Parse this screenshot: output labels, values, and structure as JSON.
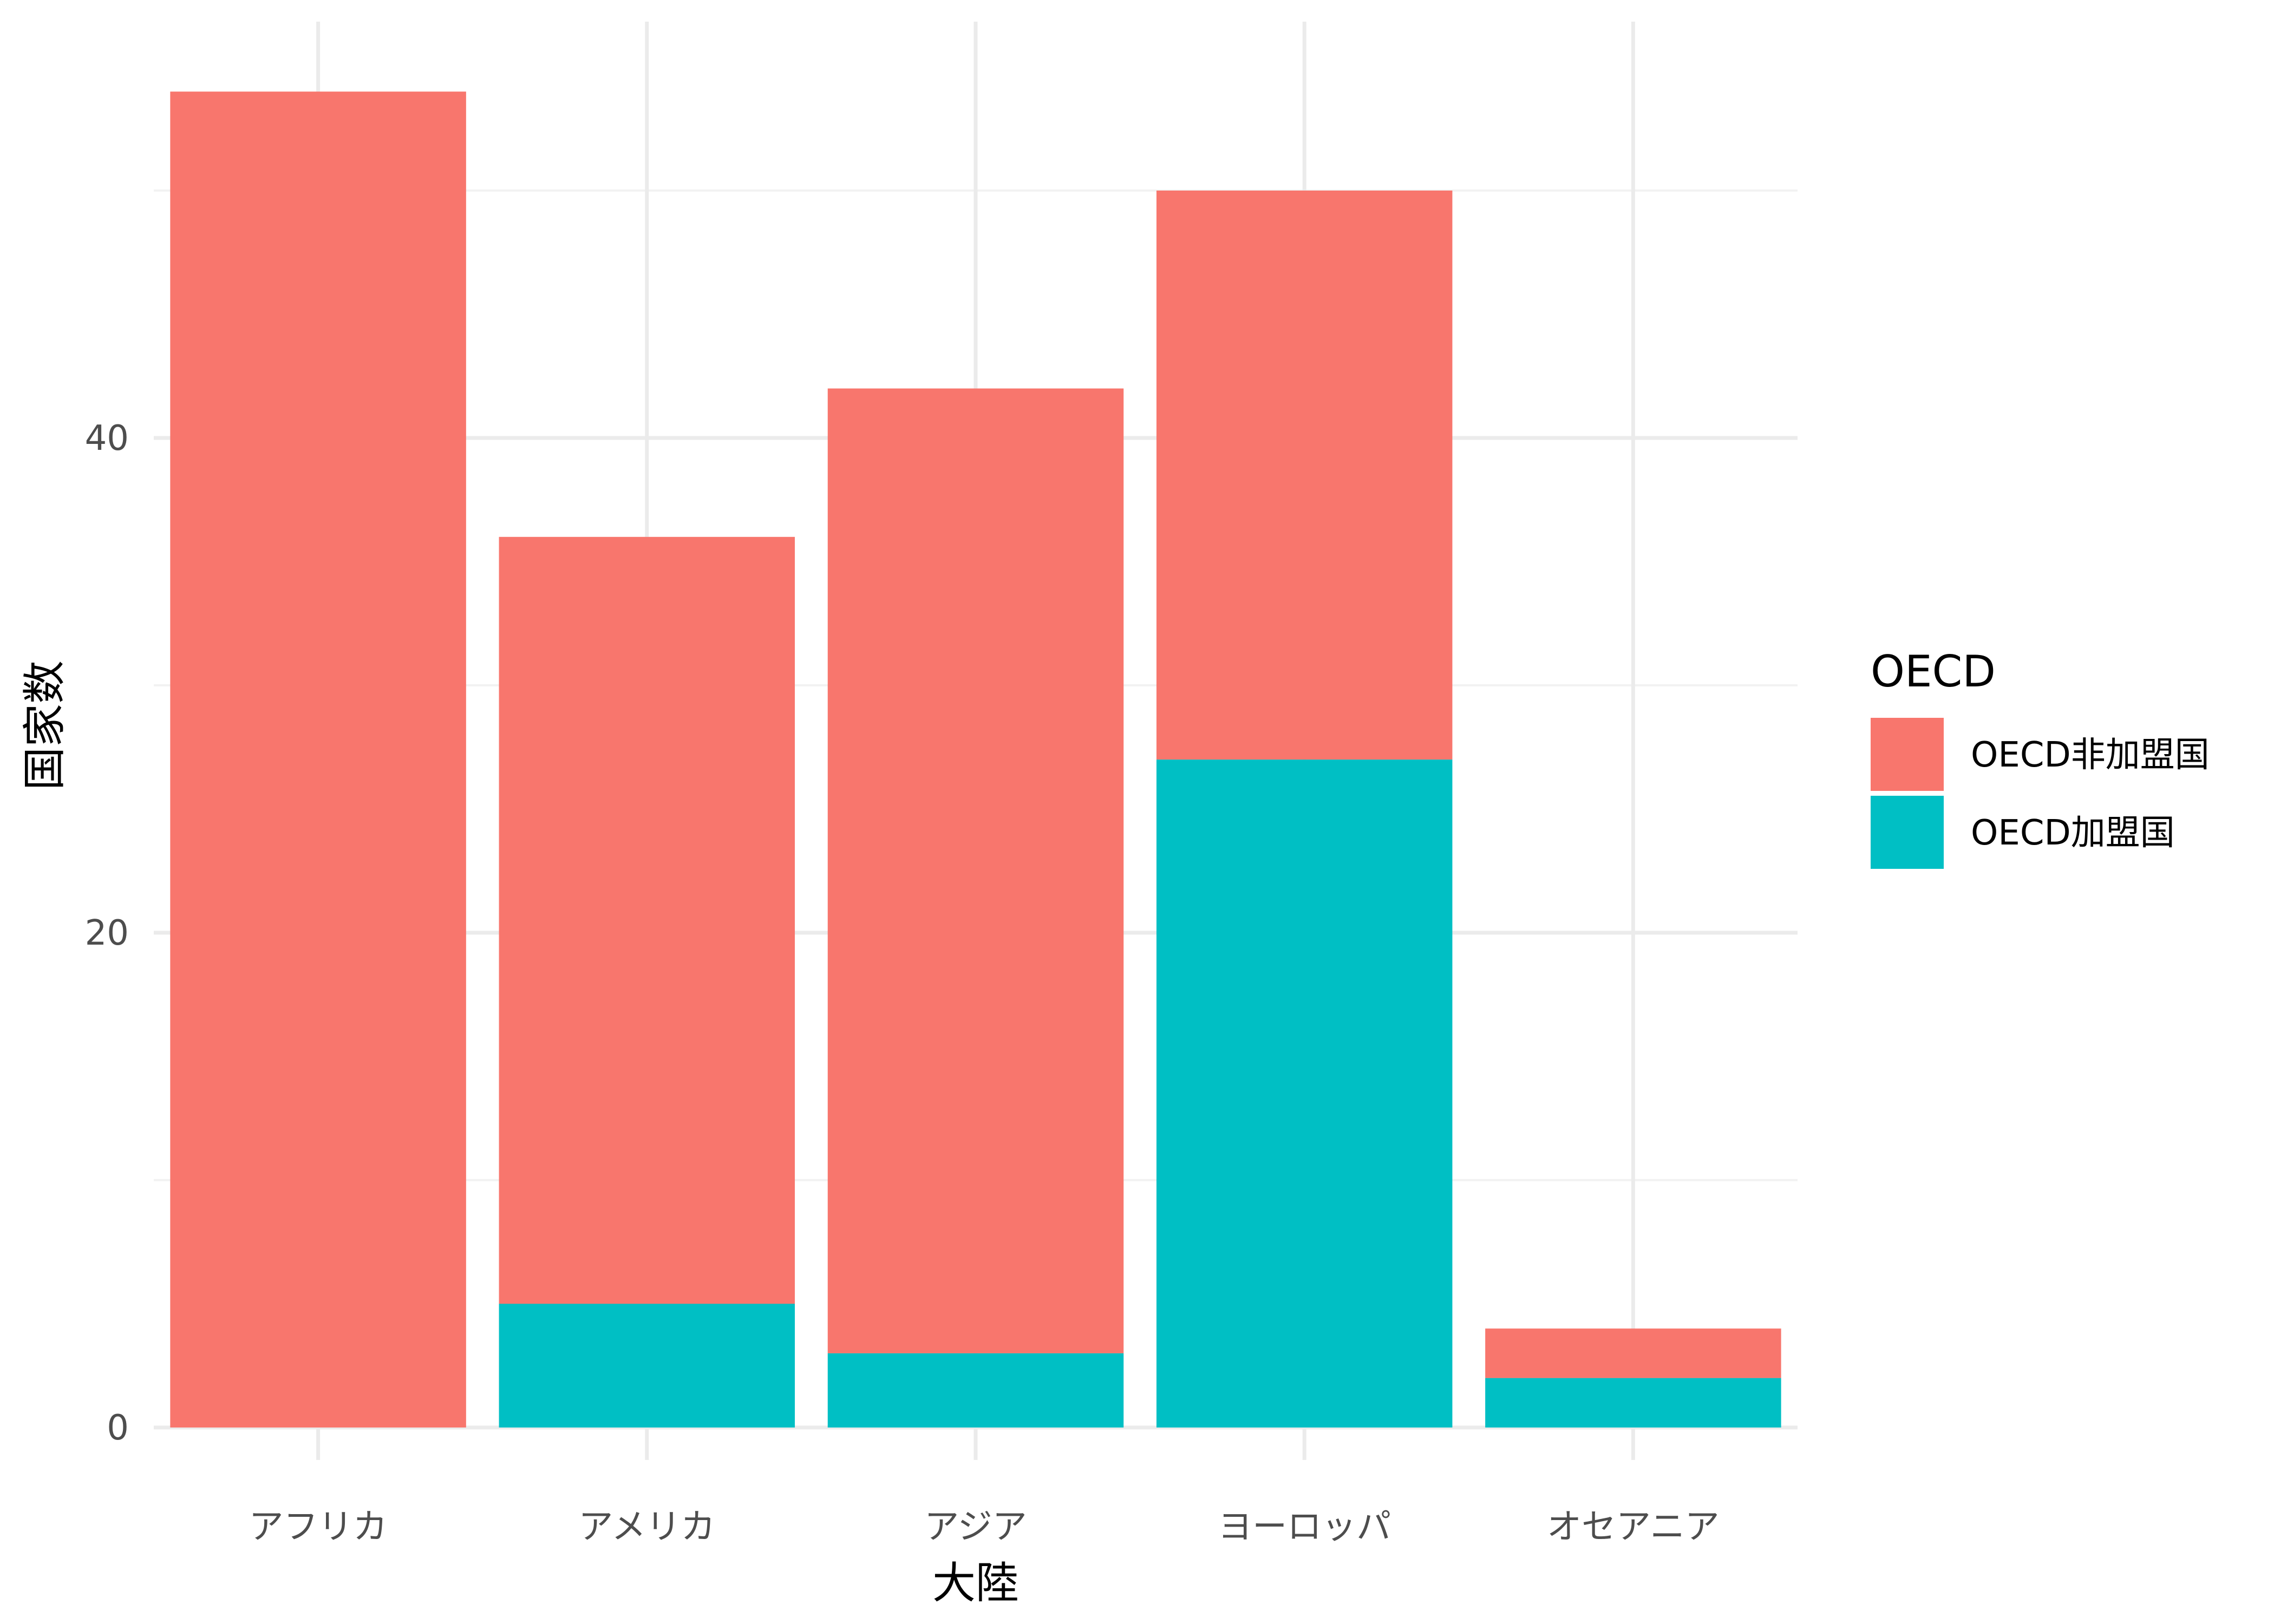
{
  "chart_data": {
    "type": "bar",
    "stacked": true,
    "categories": [
      "アフリカ",
      "アメリカ",
      "アジア",
      "ヨーロッパ",
      "オセアニア"
    ],
    "series": [
      {
        "name": "OECD非加盟国",
        "values": [
          54,
          31,
          39,
          23,
          2
        ],
        "color": "#F8766D"
      },
      {
        "name": "OECD加盟国",
        "values": [
          0,
          5,
          3,
          27,
          2
        ],
        "color": "#00BFC4"
      }
    ],
    "xlabel": "大陸",
    "ylabel": "国家数",
    "ylim": [
      0,
      54
    ],
    "yticks": [
      0,
      20,
      40
    ],
    "grid": true,
    "legend": {
      "title": "OECD",
      "position": "right"
    }
  }
}
